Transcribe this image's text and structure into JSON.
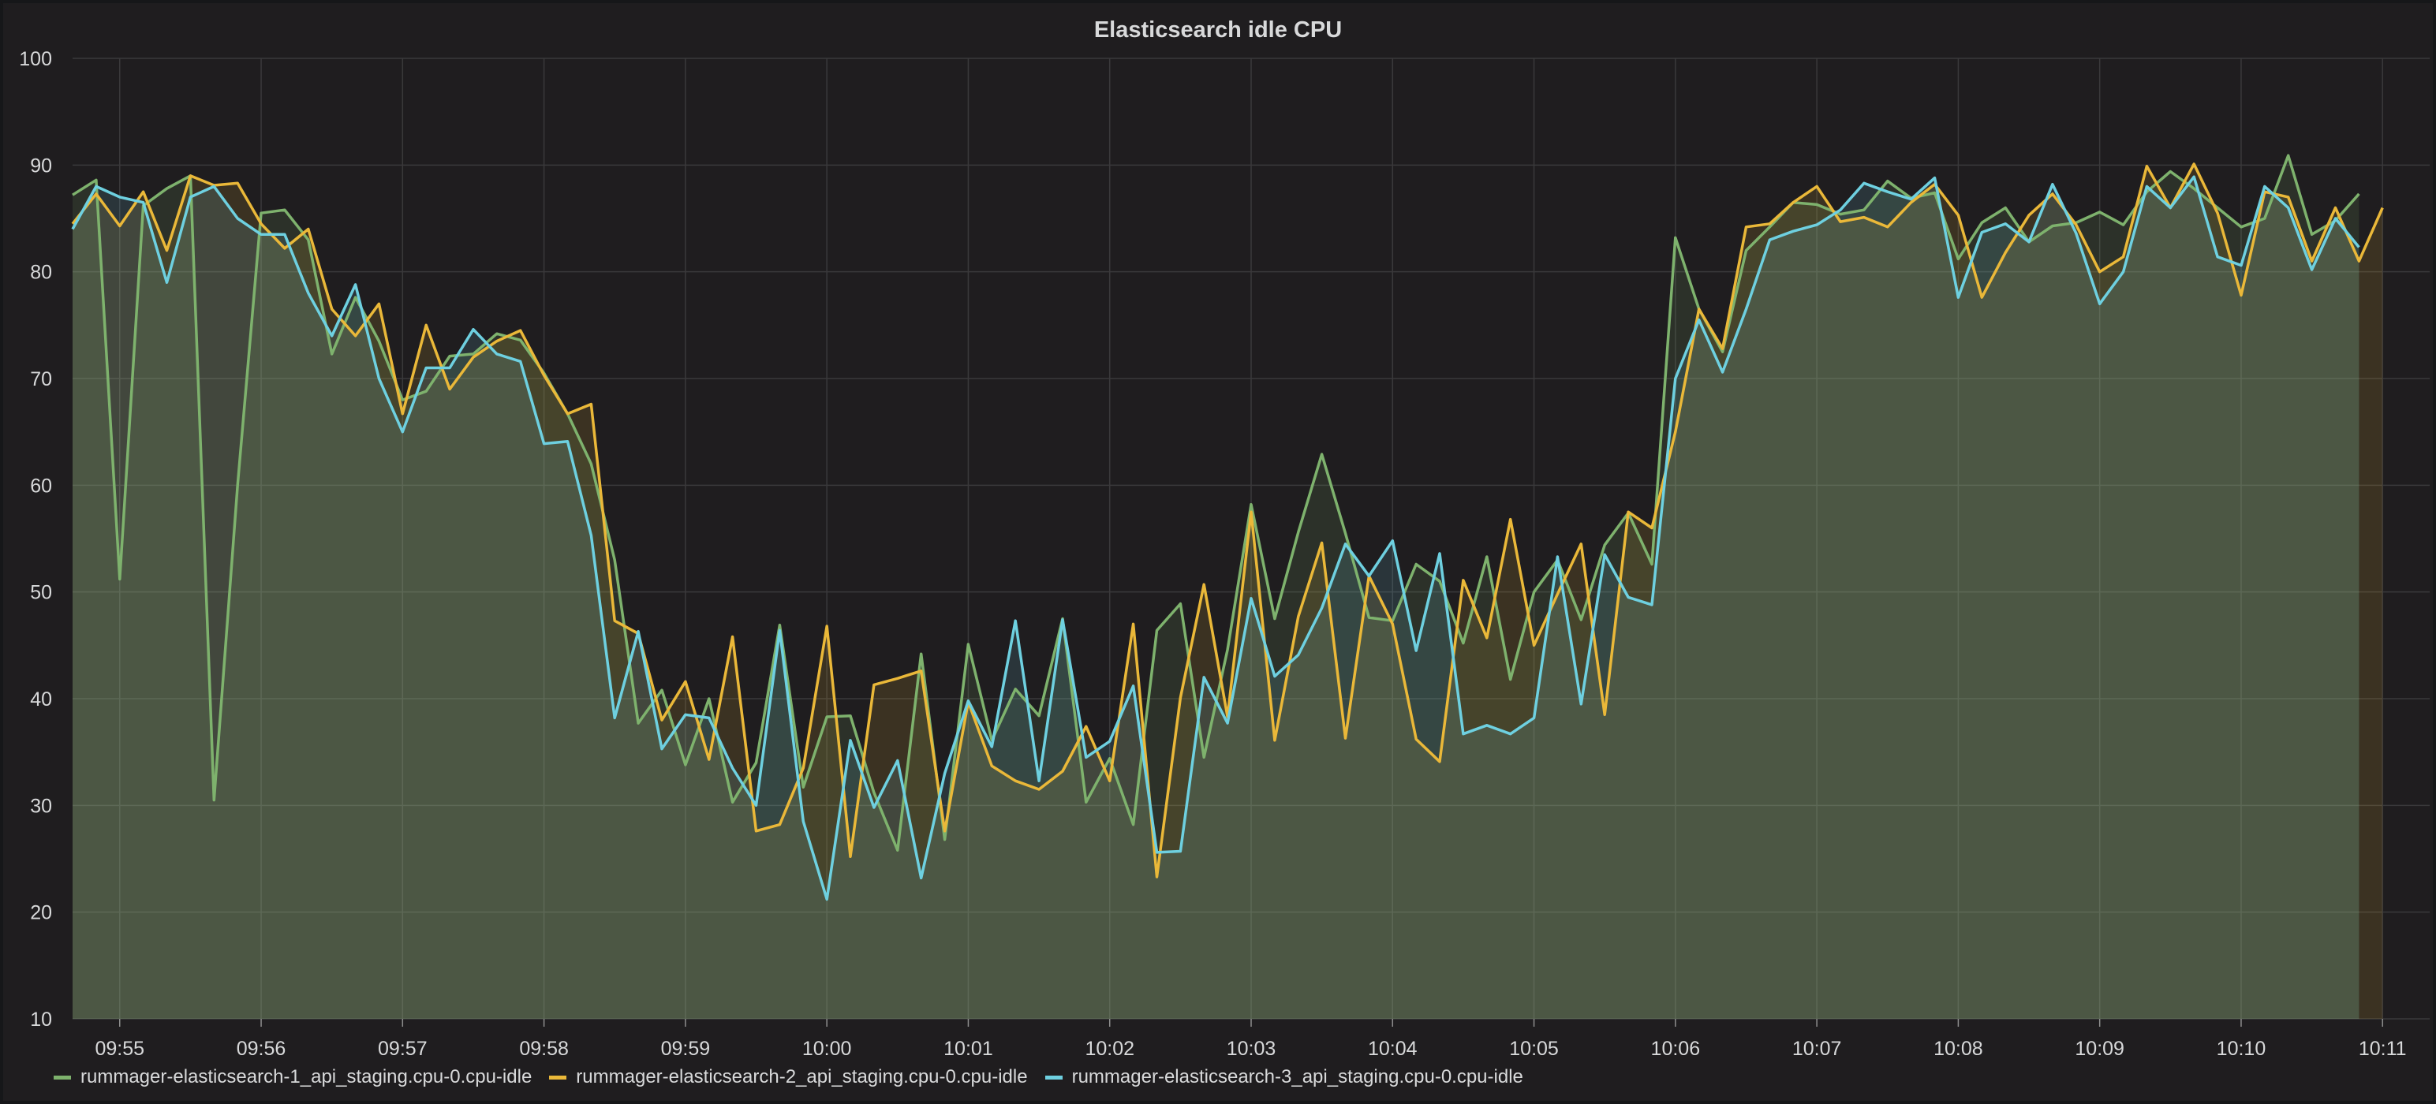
{
  "panel": {
    "title": "Elasticsearch idle CPU"
  },
  "colors": {
    "background": "#1f1d1f",
    "grid": "#3a393b",
    "text": "#d8d9da",
    "series": [
      "#7eb26d",
      "#eab839",
      "#6ed0e0"
    ]
  },
  "chart_data": {
    "type": "area",
    "title": "Elasticsearch idle CPU",
    "xlabel": "",
    "ylabel": "",
    "ylim": [
      10,
      100
    ],
    "yticks": [
      10,
      20,
      30,
      40,
      50,
      60,
      70,
      80,
      90,
      100
    ],
    "xlim": [
      "09:54:40",
      "10:11:20"
    ],
    "xticks": [
      "09:55",
      "09:56",
      "09:57",
      "09:58",
      "09:59",
      "10:00",
      "10:01",
      "10:02",
      "10:03",
      "10:04",
      "10:05",
      "10:06",
      "10:07",
      "10:08",
      "10:09",
      "10:10",
      "10:11"
    ],
    "grid": true,
    "legend_position": "bottom",
    "series": [
      {
        "name": "rummager-elasticsearch-1_api_staging.cpu-0.cpu-idle",
        "x": [
          "09:54:40",
          "09:54:50",
          "09:55:00",
          "09:55:10",
          "09:55:20",
          "09:55:30",
          "09:55:40",
          "09:55:50",
          "09:56:00",
          "09:56:10",
          "09:56:20",
          "09:56:30",
          "09:56:40",
          "09:56:50",
          "09:57:00",
          "09:57:10",
          "09:57:20",
          "09:57:30",
          "09:57:40",
          "09:57:50",
          "09:58:00",
          "09:58:10",
          "09:58:20",
          "09:58:30",
          "09:58:40",
          "09:58:50",
          "09:59:00",
          "09:59:10",
          "09:59:20",
          "09:59:30",
          "09:59:40",
          "09:59:50",
          "10:00:00",
          "10:00:10",
          "10:00:20",
          "10:00:30",
          "10:00:40",
          "10:00:50",
          "10:01:00",
          "10:01:10",
          "10:01:20",
          "10:01:30",
          "10:01:40",
          "10:01:50",
          "10:02:00",
          "10:02:10",
          "10:02:20",
          "10:02:30",
          "10:02:40",
          "10:02:50",
          "10:03:00",
          "10:03:10",
          "10:03:20",
          "10:03:30",
          "10:03:40",
          "10:03:50",
          "10:04:00",
          "10:04:10",
          "10:04:20",
          "10:04:30",
          "10:04:40",
          "10:04:50",
          "10:05:00",
          "10:05:10",
          "10:05:20",
          "10:05:30",
          "10:05:40",
          "10:05:50",
          "10:06:00",
          "10:06:10",
          "10:06:20",
          "10:06:30",
          "10:06:40",
          "10:06:50",
          "10:07:00",
          "10:07:10",
          "10:07:20",
          "10:07:30",
          "10:07:40",
          "10:07:50",
          "10:08:00",
          "10:08:10",
          "10:08:20",
          "10:08:30",
          "10:08:40",
          "10:08:50",
          "10:09:00",
          "10:09:10",
          "10:09:20",
          "10:09:30",
          "10:09:40",
          "10:09:50",
          "10:10:00",
          "10:10:10",
          "10:10:20",
          "10:10:30",
          "10:10:40",
          "10:10:50"
        ],
        "values": [
          87.2,
          88.6,
          51.2,
          86.2,
          87.8,
          89.0,
          30.5,
          60.0,
          85.5,
          85.8,
          83.0,
          72.3,
          77.6,
          73.5,
          68.0,
          68.8,
          72.1,
          72.3,
          74.2,
          73.6,
          70.5,
          66.7,
          62.0,
          53.0,
          37.7,
          40.8,
          33.8,
          40.0,
          30.3,
          34.0,
          46.9,
          31.7,
          38.3,
          38.4,
          31.2,
          25.8,
          44.2,
          26.8,
          45.1,
          36.1,
          40.9,
          38.4,
          47.5,
          30.3,
          34.4,
          28.2,
          46.4,
          48.9,
          34.5,
          44.6,
          58.2,
          47.5,
          55.6,
          62.9,
          55.5,
          47.6,
          47.3,
          52.6,
          51.0,
          45.2,
          53.3,
          41.8,
          50.0,
          53.0,
          47.4,
          54.4,
          57.4,
          52.6,
          83.2,
          76.5,
          72.5,
          82.0,
          84.2,
          86.5,
          86.3,
          85.4,
          85.8,
          88.5,
          86.9,
          87.4,
          81.2,
          84.6,
          86.0,
          82.8,
          84.3,
          84.6,
          85.6,
          84.4,
          87.5,
          89.4,
          87.8,
          86.0,
          84.2,
          85.0,
          90.9,
          83.5,
          84.8,
          87.3
        ]
      },
      {
        "name": "rummager-elasticsearch-2_api_staging.cpu-0.cpu-idle",
        "x": [
          "09:54:40",
          "09:54:50",
          "09:55:00",
          "09:55:10",
          "09:55:20",
          "09:55:30",
          "09:55:40",
          "09:55:50",
          "09:56:00",
          "09:56:10",
          "09:56:20",
          "09:56:30",
          "09:56:40",
          "09:56:50",
          "09:57:00",
          "09:57:10",
          "09:57:20",
          "09:57:30",
          "09:57:40",
          "09:57:50",
          "09:58:00",
          "09:58:10",
          "09:58:20",
          "09:58:30",
          "09:58:40",
          "09:58:50",
          "09:59:00",
          "09:59:10",
          "09:59:20",
          "09:59:30",
          "09:59:40",
          "09:59:50",
          "10:00:00",
          "10:00:10",
          "10:00:20",
          "10:00:30",
          "10:00:40",
          "10:00:50",
          "10:01:00",
          "10:01:10",
          "10:01:20",
          "10:01:30",
          "10:01:40",
          "10:01:50",
          "10:02:00",
          "10:02:10",
          "10:02:20",
          "10:02:30",
          "10:02:40",
          "10:02:50",
          "10:03:00",
          "10:03:10",
          "10:03:20",
          "10:03:30",
          "10:03:40",
          "10:03:50",
          "10:04:00",
          "10:04:10",
          "10:04:20",
          "10:04:30",
          "10:04:40",
          "10:04:50",
          "10:05:00",
          "10:05:10",
          "10:05:20",
          "10:05:30",
          "10:05:40",
          "10:05:50",
          "10:06:00",
          "10:06:10",
          "10:06:20",
          "10:06:30",
          "10:06:40",
          "10:06:50",
          "10:07:00",
          "10:07:10",
          "10:07:20",
          "10:07:30",
          "10:07:40",
          "10:07:50",
          "10:08:00",
          "10:08:10",
          "10:08:20",
          "10:08:30",
          "10:08:40",
          "10:08:50",
          "10:09:00",
          "10:09:10",
          "10:09:20",
          "10:09:30",
          "10:09:40",
          "10:09:50",
          "10:10:00",
          "10:10:10",
          "10:10:20",
          "10:10:30",
          "10:10:40",
          "10:10:50",
          "10:11:00"
        ],
        "values": [
          84.5,
          87.3,
          84.3,
          87.5,
          82.0,
          89.0,
          88.1,
          88.3,
          84.5,
          82.2,
          84.0,
          76.5,
          74.0,
          77.0,
          66.7,
          75.0,
          69.0,
          72.0,
          73.5,
          74.5,
          70.3,
          66.7,
          67.6,
          47.3,
          46.1,
          38.0,
          41.6,
          34.3,
          45.8,
          27.6,
          28.2,
          33.5,
          46.8,
          25.2,
          41.3,
          41.9,
          42.6,
          27.6,
          39.7,
          33.7,
          32.3,
          31.5,
          33.2,
          37.4,
          32.3,
          47.0,
          23.3,
          40.1,
          50.7,
          38.3,
          57.5,
          36.1,
          47.7,
          54.6,
          36.3,
          51.5,
          47.0,
          36.2,
          34.1,
          51.1,
          45.7,
          56.8,
          45.0,
          49.8,
          54.5,
          38.5,
          57.5,
          56.0,
          65.0,
          76.5,
          72.8,
          84.2,
          84.5,
          86.5,
          88.0,
          84.7,
          85.1,
          84.2,
          86.5,
          88.2,
          85.3,
          77.6,
          81.8,
          85.3,
          87.3,
          84.4,
          80.0,
          81.4,
          89.9,
          86.0,
          90.1,
          85.5,
          77.8,
          87.5,
          87.0,
          81.0,
          86.0,
          81.0,
          86.0
        ]
      },
      {
        "name": "rummager-elasticsearch-3_api_staging.cpu-0.cpu-idle",
        "x": [
          "09:54:40",
          "09:54:50",
          "09:55:00",
          "09:55:10",
          "09:55:20",
          "09:55:30",
          "09:55:40",
          "09:55:50",
          "09:56:00",
          "09:56:10",
          "09:56:20",
          "09:56:30",
          "09:56:40",
          "09:56:50",
          "09:57:00",
          "09:57:10",
          "09:57:20",
          "09:57:30",
          "09:57:40",
          "09:57:50",
          "09:58:00",
          "09:58:10",
          "09:58:20",
          "09:58:30",
          "09:58:40",
          "09:58:50",
          "09:59:00",
          "09:59:10",
          "09:59:20",
          "09:59:30",
          "09:59:40",
          "09:59:50",
          "10:00:00",
          "10:00:10",
          "10:00:20",
          "10:00:30",
          "10:00:40",
          "10:00:50",
          "10:01:00",
          "10:01:10",
          "10:01:20",
          "10:01:30",
          "10:01:40",
          "10:01:50",
          "10:02:00",
          "10:02:10",
          "10:02:20",
          "10:02:30",
          "10:02:40",
          "10:02:50",
          "10:03:00",
          "10:03:10",
          "10:03:20",
          "10:03:30",
          "10:03:40",
          "10:03:50",
          "10:04:00",
          "10:04:10",
          "10:04:20",
          "10:04:30",
          "10:04:40",
          "10:04:50",
          "10:05:00",
          "10:05:10",
          "10:05:20",
          "10:05:30",
          "10:05:40",
          "10:05:50",
          "10:06:00",
          "10:06:10",
          "10:06:20",
          "10:06:30",
          "10:06:40",
          "10:06:50",
          "10:07:00",
          "10:07:10",
          "10:07:20",
          "10:07:30",
          "10:07:40",
          "10:07:50",
          "10:08:00",
          "10:08:10",
          "10:08:20",
          "10:08:30",
          "10:08:40",
          "10:08:50",
          "10:09:00",
          "10:09:10",
          "10:09:20",
          "10:09:30",
          "10:09:40",
          "10:09:50",
          "10:10:00",
          "10:10:10",
          "10:10:20",
          "10:10:30",
          "10:10:40",
          "10:10:50"
        ],
        "values": [
          84.0,
          88.0,
          87.0,
          86.5,
          79.0,
          87.0,
          88.0,
          85.0,
          83.5,
          83.5,
          78.0,
          74.0,
          78.8,
          70.0,
          65.0,
          71.0,
          71.0,
          74.6,
          72.3,
          71.6,
          63.9,
          64.1,
          55.3,
          38.2,
          46.3,
          35.3,
          38.5,
          38.2,
          33.5,
          30.0,
          46.4,
          28.5,
          21.2,
          36.1,
          29.8,
          34.2,
          23.2,
          33.0,
          39.8,
          35.5,
          47.3,
          32.3,
          47.4,
          34.5,
          36.0,
          41.2,
          25.6,
          25.7,
          42.0,
          37.7,
          49.4,
          42.1,
          44.1,
          48.5,
          54.5,
          51.5,
          54.8,
          44.5,
          53.6,
          36.7,
          37.5,
          36.7,
          38.2,
          53.3,
          39.5,
          53.5,
          49.5,
          48.8,
          70.0,
          75.5,
          70.6,
          76.5,
          83.0,
          83.8,
          84.4,
          85.8,
          88.3,
          87.5,
          86.8,
          88.8,
          77.6,
          83.7,
          84.5,
          82.8,
          88.2,
          83.6,
          77.0,
          80.0,
          88.0,
          86.0,
          88.9,
          81.4,
          80.6,
          88.0,
          86.0,
          80.2,
          85.0,
          82.3
        ]
      }
    ]
  }
}
